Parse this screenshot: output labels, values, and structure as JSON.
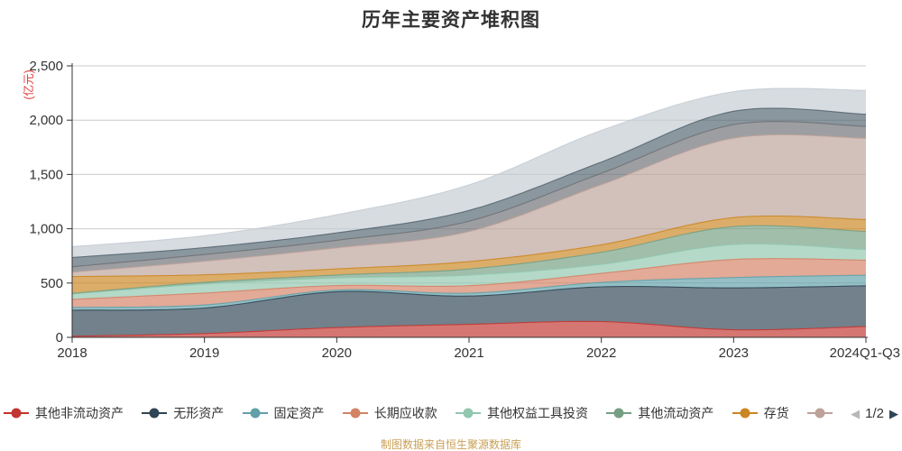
{
  "title": "历年主要资产堆积图",
  "y_axis": {
    "name": "(亿元)",
    "name_color": "#e4393c",
    "tick_labels": [
      "0",
      "500",
      "1,000",
      "1,500",
      "2,000",
      "2,500"
    ]
  },
  "legend": {
    "items": [
      {
        "label": "其他非流动资产",
        "color": "#c23531"
      },
      {
        "label": "无形资产",
        "color": "#2f4554"
      },
      {
        "label": "固定资产",
        "color": "#61a0a8"
      },
      {
        "label": "长期应收款",
        "color": "#d48265"
      },
      {
        "label": "其他权益工具投资",
        "color": "#91c7ae"
      },
      {
        "label": "其他流动资产",
        "color": "#749f83"
      },
      {
        "label": "存货",
        "color": "#ca8622"
      },
      {
        "label": "",
        "color": "#bda29a"
      }
    ],
    "pager": {
      "prev_icon": "◀",
      "prev_color": "#b8b8b8",
      "label": "1/2",
      "next_icon": "▶",
      "next_color": "#2f4554"
    }
  },
  "footer": {
    "text": "制图数据来自恒生聚源数据库",
    "color": "#c8a055"
  },
  "chart_data": {
    "type": "area",
    "stacked": true,
    "smooth": true,
    "title": "历年主要资产堆积图",
    "ylabel": "(亿元)",
    "ylim": [
      0,
      2500
    ],
    "ytick_values": [
      0,
      500,
      1000,
      1500,
      2000,
      2500
    ],
    "grid": true,
    "legend_position": "bottom",
    "categories": [
      "2018",
      "2019",
      "2020",
      "2021",
      "2022",
      "2023",
      "2024Q1-Q3"
    ],
    "series": [
      {
        "name": "其他非流动资产",
        "color": "#c23531",
        "values": [
          10,
          35,
          90,
          120,
          145,
          70,
          100
        ]
      },
      {
        "name": "无形资产",
        "color": "#2f4554",
        "values": [
          240,
          235,
          330,
          260,
          320,
          385,
          375
        ]
      },
      {
        "name": "固定资产",
        "color": "#61a0a8",
        "values": [
          25,
          28,
          15,
          27,
          41,
          96,
          97
        ]
      },
      {
        "name": "长期应收款",
        "color": "#d48265",
        "values": [
          75,
          110,
          42,
          69,
          83,
          166,
          139
        ]
      },
      {
        "name": "其他权益工具投资",
        "color": "#91c7ae",
        "values": [
          50,
          83,
          70,
          97,
          83,
          138,
          97
        ]
      },
      {
        "name": "其他流动资产",
        "color": "#749f83",
        "values": [
          5,
          15,
          27,
          56,
          111,
          165,
          166
        ]
      },
      {
        "name": "存货",
        "color": "#ca8622",
        "values": [
          155,
          70,
          56,
          69,
          69,
          83,
          111
        ]
      },
      {
        "name": "",
        "color": "#bda29a",
        "values": [
          40,
          125,
          194,
          277,
          554,
          731,
          748
        ]
      },
      {
        "name": "",
        "color": "#6e7074",
        "values": [
          50,
          62,
          70,
          95,
          105,
          125,
          110
        ]
      },
      {
        "name": "",
        "color": "#546570",
        "values": [
          85,
          63,
          68,
          99,
          103,
          123,
          111
        ]
      },
      {
        "name": "",
        "color": "#c4ccd3",
        "values": [
          100,
          110,
          167,
          235,
          291,
          180,
          220
        ]
      }
    ]
  }
}
